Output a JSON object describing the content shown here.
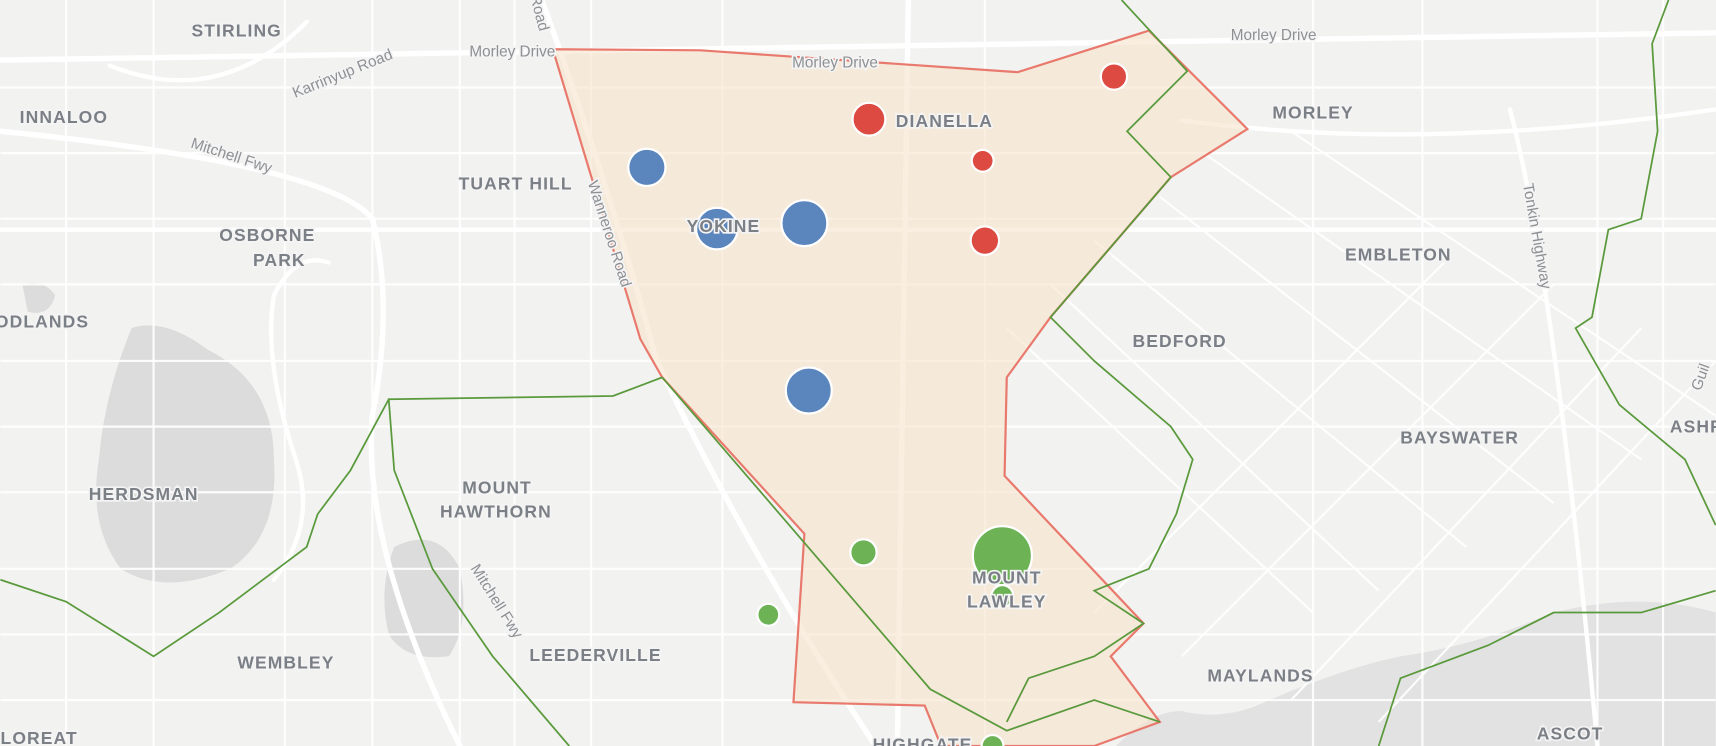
{
  "labels": [
    {
      "text": "STIRLING",
      "kind": "suburb"
    },
    {
      "text": "INNALOO",
      "kind": "suburb"
    },
    {
      "text": "TUART HILL",
      "kind": "suburb"
    },
    {
      "text": "OSBORNE",
      "kind": "suburb"
    },
    {
      "text": "PARK",
      "kind": "suburb"
    },
    {
      "text": "ODLANDS",
      "kind": "suburb"
    },
    {
      "text": "HERDSMAN",
      "kind": "suburb"
    },
    {
      "text": "MOUNT",
      "kind": "suburb"
    },
    {
      "text": "HAWTHORN",
      "kind": "suburb"
    },
    {
      "text": "WEMBLEY",
      "kind": "suburb"
    },
    {
      "text": "LEEDERVILLE",
      "kind": "suburb"
    },
    {
      "text": "FLOREAT",
      "kind": "suburb"
    },
    {
      "text": "DIANELLA",
      "kind": "suburb"
    },
    {
      "text": "YOKINE",
      "kind": "suburb"
    },
    {
      "text": "MORLEY",
      "kind": "suburb"
    },
    {
      "text": "EMBLETON",
      "kind": "suburb"
    },
    {
      "text": "BEDFORD",
      "kind": "suburb"
    },
    {
      "text": "BAYSWATER",
      "kind": "suburb"
    },
    {
      "text": "MAYLANDS",
      "kind": "suburb"
    },
    {
      "text": "ASCOT",
      "kind": "suburb"
    },
    {
      "text": "MOUNT",
      "kind": "suburb"
    },
    {
      "text": "LAWLEY",
      "kind": "suburb"
    },
    {
      "text": "HIGHGATE",
      "kind": "suburb"
    },
    {
      "text": "ASHF",
      "kind": "suburb"
    },
    {
      "text": "Morley Drive",
      "kind": "road"
    },
    {
      "text": "Morley Drive",
      "kind": "road"
    },
    {
      "text": "Morley Drive",
      "kind": "road"
    },
    {
      "text": "Karrinyup Road",
      "kind": "road"
    },
    {
      "text": "Mitchell Fwy",
      "kind": "road"
    },
    {
      "text": "Mitchell Fwy",
      "kind": "road"
    },
    {
      "text": "Wanneroo Road",
      "kind": "road"
    },
    {
      "text": "Road",
      "kind": "road"
    },
    {
      "text": "Tonkin Highway",
      "kind": "road"
    },
    {
      "text": "Guil",
      "kind": "road"
    }
  ]
}
